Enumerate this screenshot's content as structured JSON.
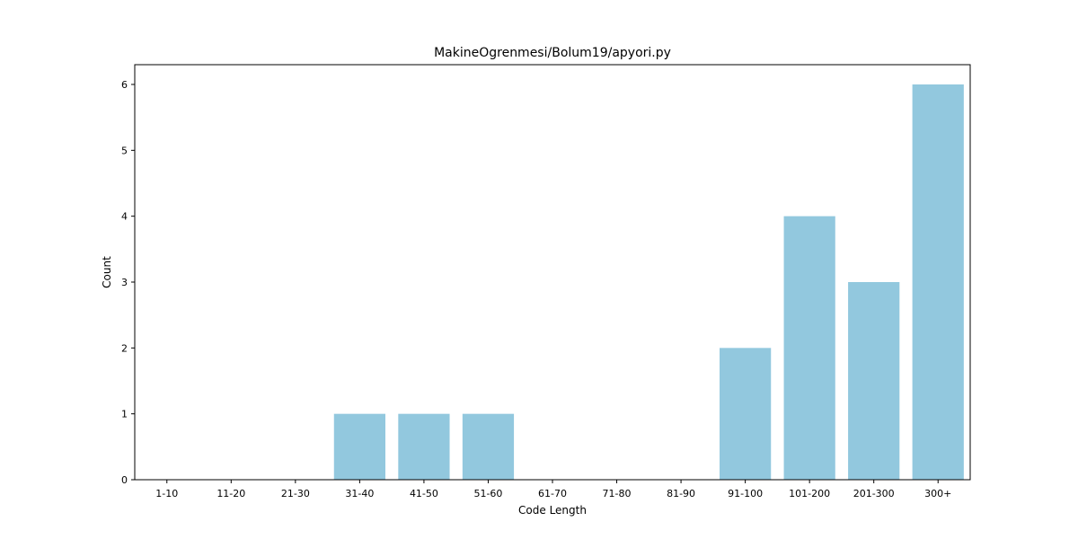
{
  "chart_data": {
    "type": "bar",
    "title": "MakineOgrenmesi/Bolum19/apyori.py",
    "xlabel": "Code Length",
    "ylabel": "Count",
    "categories": [
      "1-10",
      "11-20",
      "21-30",
      "31-40",
      "41-50",
      "51-60",
      "61-70",
      "71-80",
      "81-90",
      "91-100",
      "101-200",
      "201-300",
      "300+"
    ],
    "values": [
      0,
      0,
      0,
      1,
      1,
      1,
      0,
      0,
      0,
      2,
      4,
      3,
      6
    ],
    "yticks": [
      0,
      1,
      2,
      3,
      4,
      5,
      6
    ],
    "ylim": [
      0,
      6.3
    ],
    "bar_color": "#92c8de",
    "grid": false,
    "legend": "none"
  }
}
